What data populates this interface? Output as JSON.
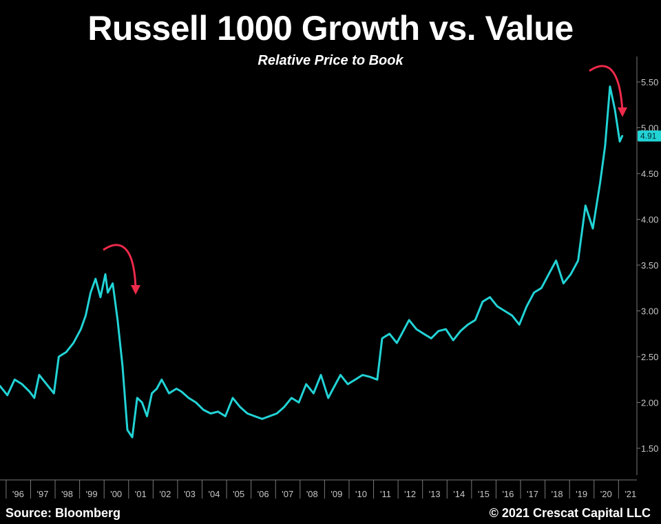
{
  "chart_data": {
    "type": "line",
    "title": "Russell 1000 Growth vs. Value",
    "subtitle": "Relative Price to Book",
    "x_tick_labels": [
      "'96",
      "'97",
      "'98",
      "'99",
      "'00",
      "'01",
      "'02",
      "'03",
      "'04",
      "'05",
      "'06",
      "'07",
      "'08",
      "'09",
      "'10",
      "'11",
      "'12",
      "'13",
      "'14",
      "'15",
      "'16",
      "'17",
      "'18",
      "'19",
      "'20",
      "'21"
    ],
    "y_ticks": [
      1.5,
      2.0,
      2.5,
      3.0,
      3.5,
      4.0,
      4.5,
      5.0,
      5.5
    ],
    "y_tick_labels": [
      "1.50",
      "2.00",
      "2.50",
      "3.00",
      "3.50",
      "4.00",
      "4.50",
      "5.00",
      "5.50"
    ],
    "ylim": [
      1.2,
      5.75
    ],
    "xlim": [
      1995.6,
      2021.6
    ],
    "last_value_label": "4.91",
    "line_color": "#22d3d6",
    "annotation_color": "#ee2a4a",
    "series": [
      {
        "x": [
          1995.6,
          1995.9,
          1996.2,
          1996.5,
          1996.8,
          1997.0,
          1997.2,
          1997.5,
          1997.8,
          1998.0,
          1998.3,
          1998.6,
          1998.9,
          1999.1,
          1999.3,
          1999.5,
          1999.7,
          1999.9,
          2000.0,
          2000.2,
          2000.4,
          2000.6,
          2000.8,
          2001.0,
          2001.2,
          2001.4,
          2001.6,
          2001.8,
          2002.0,
          2002.2,
          2002.5,
          2002.8,
          2003.0,
          2003.3,
          2003.6,
          2003.9,
          2004.2,
          2004.5,
          2004.8,
          2005.1,
          2005.4,
          2005.7,
          2006.0,
          2006.3,
          2006.6,
          2006.9,
          2007.2,
          2007.5,
          2007.8,
          2008.1,
          2008.4,
          2008.7,
          2009.0,
          2009.2,
          2009.5,
          2009.8,
          2010.1,
          2010.4,
          2010.7,
          2011.0,
          2011.2,
          2011.5,
          2011.8,
          2012.0,
          2012.3,
          2012.6,
          2012.9,
          2013.2,
          2013.5,
          2013.8,
          2014.1,
          2014.4,
          2014.7,
          2015.0,
          2015.3,
          2015.6,
          2015.9,
          2016.2,
          2016.5,
          2016.8,
          2017.1,
          2017.4,
          2017.7,
          2018.0,
          2018.3,
          2018.6,
          2018.9,
          2019.2,
          2019.5,
          2019.8,
          2020.1,
          2020.3,
          2020.5,
          2020.7,
          2020.9,
          2021.0
        ],
        "y": [
          2.18,
          2.08,
          2.25,
          2.2,
          2.12,
          2.05,
          2.3,
          2.2,
          2.1,
          2.5,
          2.55,
          2.65,
          2.8,
          2.95,
          3.2,
          3.35,
          3.15,
          3.4,
          3.2,
          3.3,
          2.9,
          2.4,
          1.7,
          1.62,
          2.05,
          2.0,
          1.85,
          2.1,
          2.15,
          2.25,
          2.1,
          2.15,
          2.12,
          2.05,
          2.0,
          1.92,
          1.88,
          1.9,
          1.85,
          2.05,
          1.95,
          1.88,
          1.85,
          1.82,
          1.85,
          1.88,
          1.95,
          2.05,
          2.0,
          2.2,
          2.1,
          2.3,
          2.05,
          2.15,
          2.3,
          2.2,
          2.25,
          2.3,
          2.28,
          2.25,
          2.7,
          2.75,
          2.65,
          2.75,
          2.9,
          2.8,
          2.75,
          2.7,
          2.78,
          2.8,
          2.68,
          2.78,
          2.85,
          2.9,
          3.1,
          3.15,
          3.05,
          3.0,
          2.95,
          2.85,
          3.05,
          3.2,
          3.25,
          3.4,
          3.55,
          3.3,
          3.4,
          3.55,
          4.15,
          3.9,
          4.4,
          4.8,
          5.45,
          5.2,
          4.85,
          4.91
        ]
      }
    ]
  },
  "footer": {
    "source": "Source: Bloomberg",
    "copyright": "© 2021 Crescat Capital LLC"
  }
}
